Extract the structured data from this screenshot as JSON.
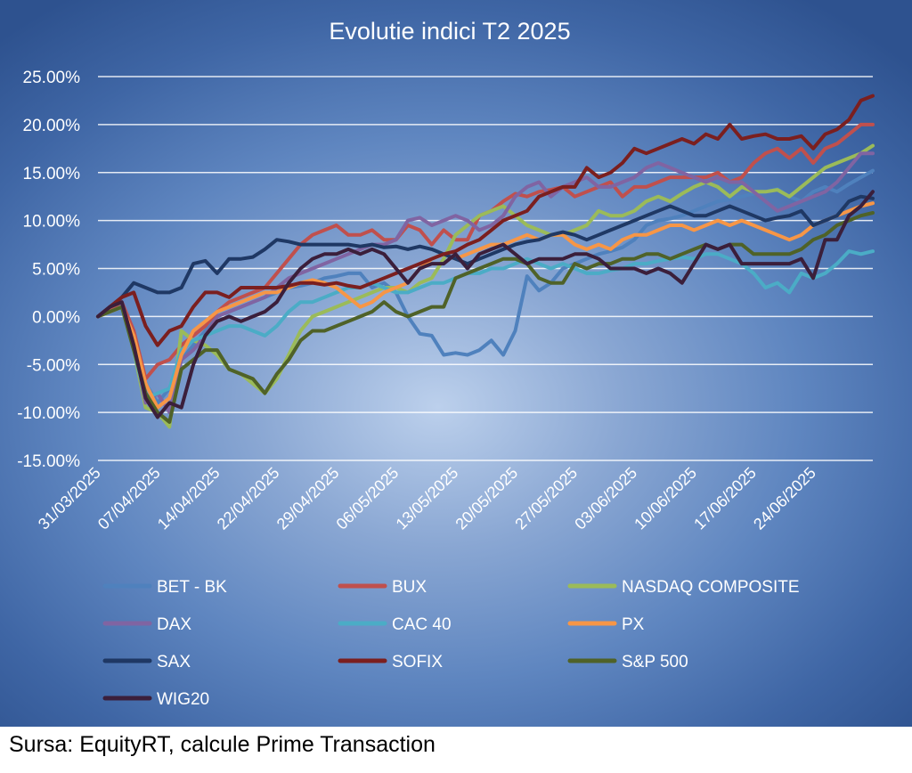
{
  "chart_data": {
    "type": "line",
    "title": "Evolutie indici T2 2025",
    "xlabel": "",
    "ylabel": "",
    "ylim": [
      -15,
      25
    ],
    "y_ticks": [
      "25.00%",
      "20.00%",
      "15.00%",
      "10.00%",
      "5.00%",
      "0.00%",
      "-5.00%",
      "-10.00%",
      "-15.00%"
    ],
    "y_tick_values": [
      25,
      20,
      15,
      10,
      5,
      0,
      -5,
      -10,
      -15
    ],
    "x_tick_labels": [
      "31/03/2025",
      "07/04/2025",
      "14/04/2025",
      "22/04/2025",
      "29/04/2025",
      "06/05/2025",
      "13/05/2025",
      "20/05/2025",
      "27/05/2025",
      "03/06/2025",
      "10/06/2025",
      "17/06/2025",
      "24/06/2025"
    ],
    "x_tick_index": [
      0,
      5,
      10,
      15,
      20,
      25,
      30,
      35,
      40,
      45,
      50,
      55,
      60
    ],
    "grid": "horizontal",
    "legend_position": "bottom",
    "series": [
      {
        "name": "BET - BK",
        "color": "#4f81bd",
        "values": [
          0.0,
          0.5,
          1.0,
          -2.0,
          -7.0,
          -9.0,
          -7.5,
          -4.5,
          -3.0,
          -1.5,
          0.0,
          0.5,
          1.0,
          1.5,
          2.0,
          2.5,
          3.0,
          3.2,
          3.5,
          4.0,
          4.2,
          4.5,
          4.5,
          3.0,
          3.5,
          2.5,
          0.0,
          -1.8,
          -2.0,
          -4.0,
          -3.8,
          -4.0,
          -3.5,
          -2.5,
          -4.0,
          -1.5,
          4.2,
          2.7,
          3.5,
          5.0,
          5.5,
          6.0,
          6.5,
          6.8,
          7.2,
          8.0,
          9.5,
          10.0,
          10.2,
          10.5,
          11.0,
          11.5,
          12.0,
          12.2,
          12.5,
          12.8,
          13.0,
          13.3,
          12.5,
          12.0,
          13.0,
          13.5,
          13.0,
          13.8,
          14.5,
          15.2
        ]
      },
      {
        "name": "BUX",
        "color": "#c0504d",
        "values": [
          0.0,
          0.8,
          1.5,
          -1.5,
          -6.5,
          -5.0,
          -4.5,
          -3.0,
          -2.0,
          -1.0,
          0.5,
          1.5,
          2.0,
          2.5,
          3.0,
          4.5,
          6.0,
          7.5,
          8.5,
          9.0,
          9.5,
          8.5,
          8.5,
          9.0,
          8.0,
          8.0,
          9.5,
          9.0,
          7.5,
          9.0,
          8.0,
          8.0,
          10.5,
          11.0,
          12.0,
          12.8,
          12.5,
          13.0,
          13.2,
          13.5,
          12.5,
          13.0,
          13.5,
          14.0,
          12.5,
          13.5,
          13.5,
          14.0,
          14.5,
          14.5,
          14.5,
          14.5,
          15.0,
          14.0,
          14.5,
          16.0,
          17.0,
          17.5,
          16.5,
          17.5,
          16.0,
          17.5,
          18.0,
          19.0,
          20.0,
          20.0
        ]
      },
      {
        "name": "NASDAQ COMPOSITE",
        "color": "#9bbb59",
        "values": [
          0.0,
          0.5,
          1.0,
          -3.5,
          -9.5,
          -10.0,
          -11.5,
          -1.5,
          -2.5,
          -3.0,
          -4.0,
          -5.5,
          -6.0,
          -7.0,
          -8.0,
          -6.5,
          -4.0,
          -1.5,
          0.0,
          0.5,
          1.0,
          1.5,
          2.0,
          2.5,
          3.0,
          3.0,
          2.5,
          3.5,
          4.0,
          6.0,
          8.5,
          9.5,
          10.5,
          11.0,
          11.5,
          10.5,
          9.5,
          9.0,
          8.5,
          8.5,
          9.0,
          9.5,
          11.0,
          10.5,
          10.5,
          11.0,
          12.0,
          12.5,
          12.0,
          12.8,
          13.5,
          14.0,
          13.5,
          12.5,
          13.5,
          13.0,
          13.0,
          13.2,
          12.5,
          13.5,
          14.5,
          15.5,
          16.0,
          16.5,
          17.0,
          17.8
        ]
      },
      {
        "name": "DAX",
        "color": "#8064a2",
        "values": [
          0.0,
          1.0,
          1.5,
          -3.0,
          -9.0,
          -8.0,
          -10.0,
          -4.5,
          -3.5,
          -2.0,
          0.0,
          0.5,
          1.0,
          1.5,
          2.0,
          3.0,
          4.0,
          4.5,
          5.0,
          5.5,
          6.0,
          6.5,
          7.0,
          7.5,
          7.5,
          8.0,
          10.0,
          10.3,
          9.5,
          10.0,
          10.5,
          10.0,
          9.0,
          9.5,
          10.5,
          12.5,
          13.5,
          14.0,
          12.5,
          13.5,
          14.0,
          14.5,
          13.5,
          13.5,
          14.0,
          14.5,
          15.5,
          16.0,
          15.5,
          15.0,
          14.5,
          14.0,
          14.5,
          14.0,
          14.0,
          13.0,
          12.0,
          11.0,
          11.5,
          12.0,
          12.5,
          13.0,
          14.0,
          15.5,
          17.0,
          17.0
        ]
      },
      {
        "name": "CAC 40",
        "color": "#4bacc6",
        "values": [
          0.0,
          0.5,
          1.0,
          -3.5,
          -8.5,
          -8.0,
          -7.5,
          -3.5,
          -2.5,
          -2.0,
          -1.5,
          -1.0,
          -1.0,
          -1.5,
          -2.0,
          -1.0,
          0.5,
          1.5,
          1.5,
          2.0,
          2.5,
          3.0,
          3.0,
          3.5,
          3.0,
          2.5,
          2.5,
          3.0,
          3.5,
          3.5,
          4.0,
          4.5,
          4.5,
          5.0,
          5.0,
          5.5,
          6.0,
          5.5,
          5.0,
          5.5,
          5.0,
          4.5,
          4.5,
          4.8,
          5.0,
          5.5,
          5.5,
          5.8,
          6.0,
          6.2,
          6.0,
          6.5,
          6.5,
          6.0,
          5.5,
          4.5,
          3.0,
          3.5,
          2.5,
          4.5,
          4.0,
          4.5,
          5.5,
          6.8,
          6.5,
          6.8
        ]
      },
      {
        "name": "PX",
        "color": "#f79646",
        "values": [
          0.0,
          0.5,
          1.0,
          -2.0,
          -7.0,
          -9.5,
          -8.5,
          -4.0,
          -1.5,
          -0.5,
          0.5,
          1.0,
          1.5,
          2.0,
          2.5,
          2.5,
          3.0,
          3.5,
          3.8,
          3.5,
          3.0,
          2.0,
          1.0,
          1.5,
          2.5,
          3.0,
          3.5,
          5.0,
          6.0,
          6.5,
          6.0,
          6.5,
          7.0,
          7.5,
          7.5,
          8.0,
          8.5,
          8.0,
          8.5,
          8.5,
          7.5,
          7.0,
          7.5,
          7.0,
          8.0,
          8.5,
          8.5,
          9.0,
          9.5,
          9.5,
          9.0,
          9.5,
          10.0,
          9.5,
          10.0,
          9.5,
          9.0,
          8.5,
          8.0,
          8.5,
          9.5,
          10.0,
          10.5,
          11.0,
          11.5,
          11.8
        ]
      },
      {
        "name": "SAX",
        "color": "#1f3864",
        "values": [
          0.0,
          1.0,
          2.0,
          3.5,
          3.0,
          2.5,
          2.5,
          3.0,
          5.5,
          5.8,
          4.5,
          6.0,
          6.0,
          6.2,
          7.0,
          8.0,
          7.8,
          7.5,
          7.5,
          7.5,
          7.5,
          7.5,
          7.3,
          7.5,
          7.2,
          7.3,
          7.0,
          7.3,
          7.0,
          6.5,
          6.0,
          5.5,
          6.0,
          6.5,
          7.0,
          7.5,
          7.8,
          8.0,
          8.5,
          8.8,
          8.5,
          8.0,
          8.5,
          9.0,
          9.5,
          10.0,
          10.5,
          11.0,
          11.5,
          11.0,
          10.5,
          10.5,
          11.0,
          11.5,
          11.0,
          10.5,
          10.0,
          10.3,
          10.5,
          11.0,
          9.5,
          10.0,
          10.5,
          12.0,
          12.5,
          12.3
        ]
      },
      {
        "name": "SOFIX",
        "color": "#7b1f1f",
        "values": [
          0.0,
          1.0,
          2.0,
          2.5,
          -1.0,
          -3.0,
          -1.5,
          -1.0,
          1.0,
          2.5,
          2.5,
          2.0,
          3.0,
          3.0,
          3.0,
          3.0,
          3.2,
          3.5,
          3.5,
          3.3,
          3.5,
          3.2,
          3.0,
          3.5,
          4.0,
          4.5,
          5.0,
          5.5,
          6.0,
          6.5,
          6.8,
          7.5,
          8.0,
          9.0,
          10.0,
          10.5,
          11.0,
          12.5,
          13.0,
          13.5,
          13.5,
          15.5,
          14.5,
          15.0,
          16.0,
          17.5,
          17.0,
          17.5,
          18.0,
          18.5,
          18.0,
          19.0,
          18.5,
          20.0,
          18.5,
          18.8,
          19.0,
          18.5,
          18.5,
          18.8,
          17.5,
          19.0,
          19.5,
          20.5,
          22.5,
          23.0
        ]
      },
      {
        "name": "S&P 500",
        "color": "#4f6228",
        "values": [
          0.0,
          0.5,
          1.0,
          -3.5,
          -8.0,
          -10.0,
          -11.0,
          -5.5,
          -4.5,
          -3.5,
          -3.5,
          -5.5,
          -6.0,
          -6.5,
          -8.0,
          -6.0,
          -4.5,
          -2.5,
          -1.5,
          -1.5,
          -1.0,
          -0.5,
          0.0,
          0.5,
          1.5,
          0.5,
          0.0,
          0.5,
          1.0,
          1.0,
          4.0,
          4.5,
          5.0,
          5.5,
          6.0,
          6.0,
          5.5,
          4.0,
          3.5,
          3.5,
          5.5,
          5.0,
          5.5,
          5.5,
          6.0,
          6.0,
          6.5,
          6.5,
          6.0,
          6.5,
          7.0,
          7.5,
          7.0,
          7.5,
          7.5,
          6.5,
          6.5,
          6.5,
          6.5,
          7.0,
          8.0,
          8.5,
          9.5,
          10.0,
          10.5,
          10.8
        ]
      },
      {
        "name": "WIG20",
        "color": "#3b1f3b",
        "values": [
          0.0,
          1.0,
          1.5,
          -3.0,
          -8.5,
          -10.5,
          -9.0,
          -9.5,
          -5.0,
          -2.0,
          -0.5,
          0.0,
          -0.5,
          0.0,
          0.5,
          1.5,
          3.5,
          5.0,
          6.0,
          6.5,
          6.5,
          7.0,
          6.5,
          7.0,
          6.5,
          5.0,
          3.5,
          5.0,
          5.5,
          5.5,
          6.5,
          5.0,
          6.5,
          7.0,
          7.5,
          6.5,
          5.5,
          6.0,
          6.0,
          6.0,
          6.5,
          6.5,
          6.0,
          5.0,
          5.0,
          5.0,
          4.5,
          5.0,
          4.5,
          3.5,
          5.5,
          7.5,
          7.0,
          7.5,
          5.5,
          5.5,
          5.5,
          5.5,
          5.5,
          6.0,
          4.0,
          8.0,
          8.0,
          10.5,
          11.5,
          13.0
        ]
      }
    ]
  },
  "footer": {
    "source": "Sursa: EquityRT, calcule Prime Transaction"
  }
}
